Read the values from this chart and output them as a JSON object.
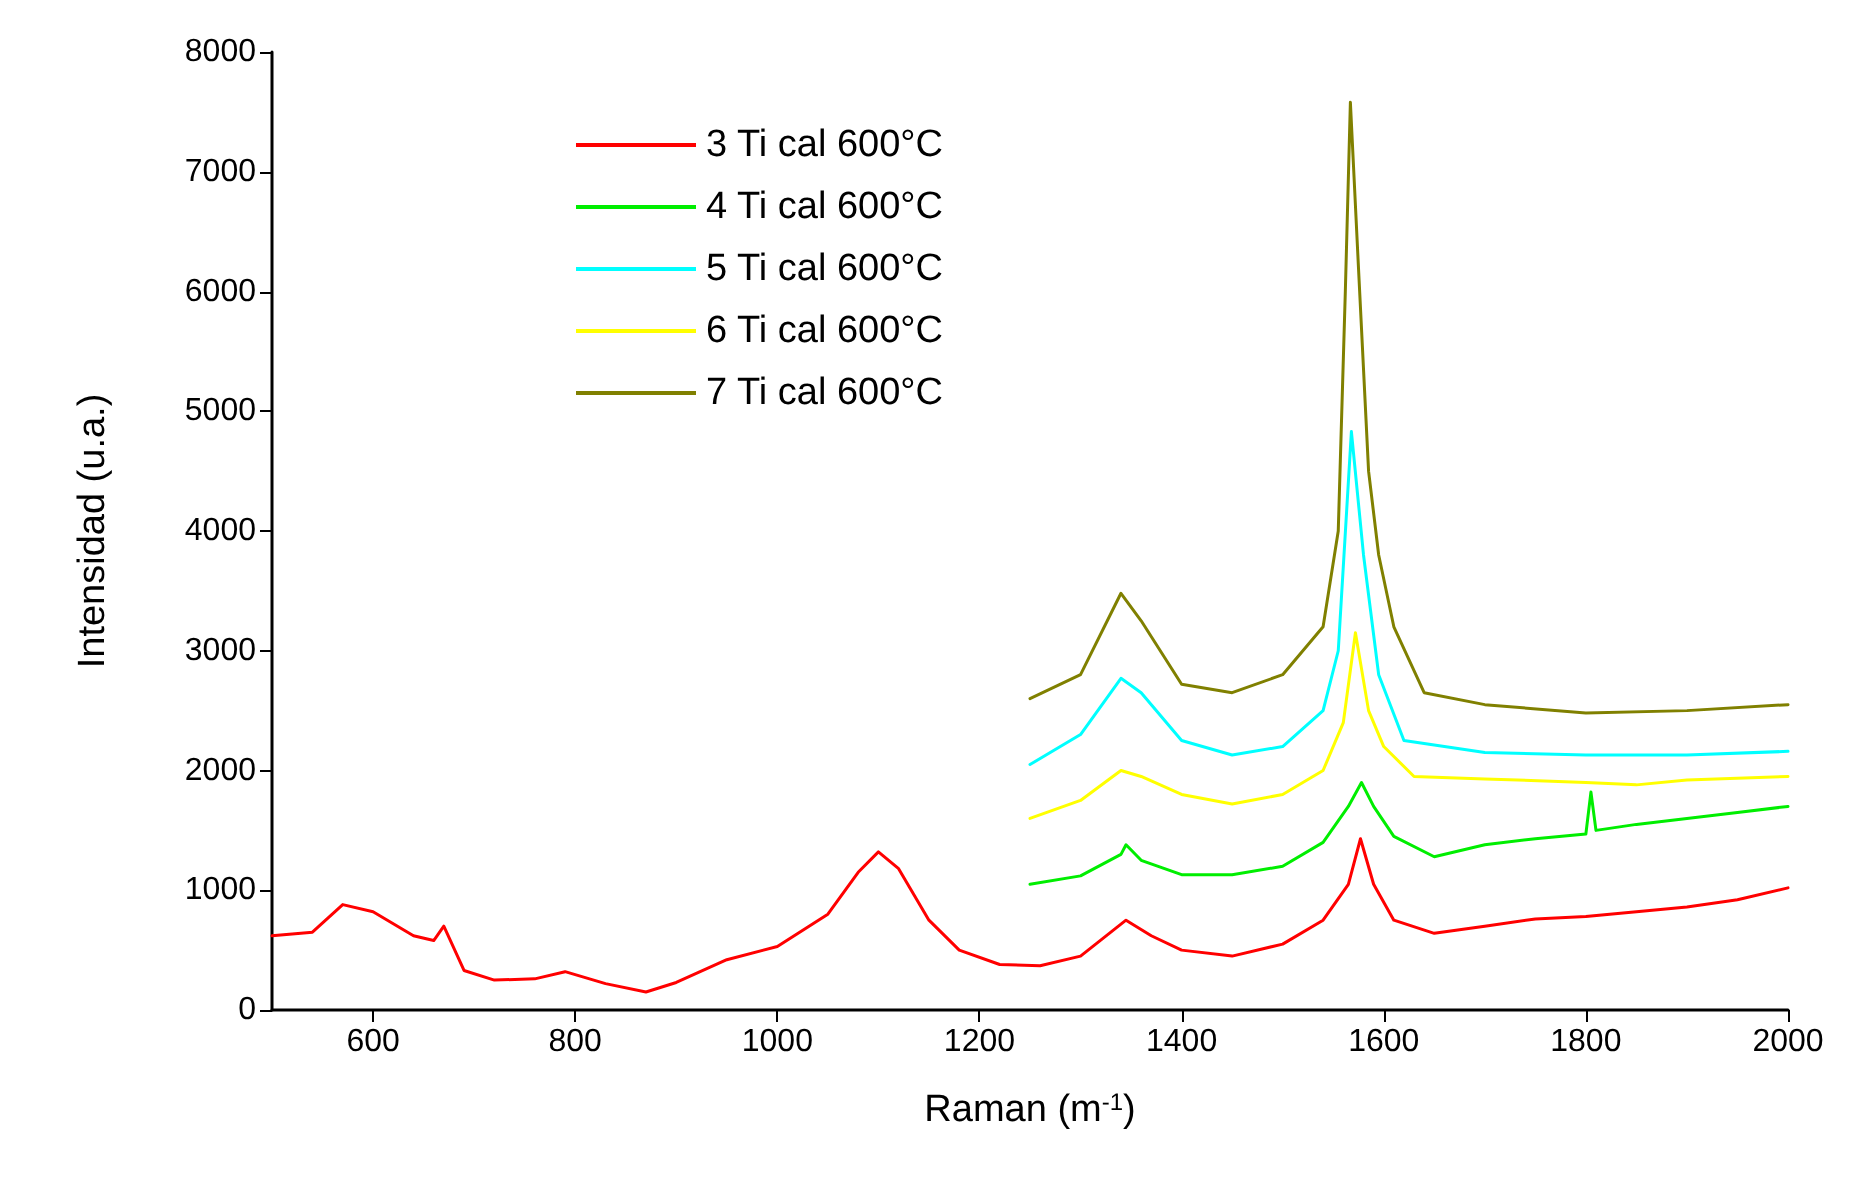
{
  "chart_data": {
    "type": "line",
    "xlabel": "Raman (m$^{-1}$)",
    "ylabel": "Intensidad (u.a.)",
    "xlim": [
      500,
      2000
    ],
    "ylim": [
      0,
      8000
    ],
    "xticks": [
      600,
      800,
      1000,
      1200,
      1400,
      1600,
      1800,
      2000
    ],
    "yticks": [
      0,
      1000,
      2000,
      3000,
      4000,
      5000,
      6000,
      7000,
      8000
    ],
    "grid": false,
    "legend": "top left",
    "marker": "none",
    "line_style": "solid",
    "series": [
      {
        "name": "3 Ti cal 600°C",
        "color": "#ff0000",
        "x": [
          500,
          540,
          570,
          600,
          640,
          660,
          670,
          690,
          720,
          760,
          790,
          830,
          870,
          900,
          950,
          1000,
          1050,
          1080,
          1100,
          1120,
          1150,
          1180,
          1220,
          1260,
          1300,
          1345,
          1370,
          1400,
          1450,
          1500,
          1540,
          1565,
          1577,
          1590,
          1610,
          1650,
          1700,
          1750,
          1800,
          1850,
          1900,
          1950,
          2000
        ],
        "values": [
          620,
          650,
          880,
          820,
          620,
          580,
          700,
          330,
          250,
          260,
          320,
          220,
          150,
          230,
          420,
          530,
          800,
          1150,
          1320,
          1180,
          750,
          500,
          380,
          370,
          450,
          750,
          620,
          500,
          450,
          550,
          750,
          1050,
          1430,
          1050,
          750,
          640,
          700,
          760,
          780,
          820,
          860,
          920,
          1020
        ]
      },
      {
        "name": "4 Ti cal 600°C",
        "color": "#00ee00",
        "x": [
          1250,
          1300,
          1340,
          1345,
          1360,
          1400,
          1450,
          1500,
          1540,
          1565,
          1578,
          1590,
          1610,
          1650,
          1700,
          1750,
          1800,
          1805,
          1810,
          1850,
          1900,
          1950,
          2000
        ],
        "values": [
          1050,
          1120,
          1300,
          1380,
          1250,
          1130,
          1130,
          1200,
          1400,
          1700,
          1900,
          1700,
          1450,
          1280,
          1380,
          1430,
          1470,
          1820,
          1500,
          1550,
          1600,
          1650,
          1700
        ]
      },
      {
        "name": "5 Ti cal 600°C",
        "color": "#00ffff",
        "x": [
          1250,
          1300,
          1340,
          1360,
          1400,
          1450,
          1500,
          1540,
          1555,
          1568,
          1580,
          1595,
          1620,
          1700,
          1800,
          1900,
          2000
        ],
        "values": [
          2050,
          2300,
          2770,
          2650,
          2250,
          2130,
          2200,
          2500,
          3000,
          4830,
          3800,
          2800,
          2250,
          2150,
          2130,
          2130,
          2160
        ]
      },
      {
        "name": "6 Ti cal 600°C",
        "color": "#ffff00",
        "x": [
          1250,
          1300,
          1340,
          1360,
          1400,
          1450,
          1500,
          1540,
          1560,
          1572,
          1585,
          1600,
          1630,
          1700,
          1800,
          1850,
          1900,
          2000
        ],
        "values": [
          1600,
          1750,
          2000,
          1950,
          1800,
          1720,
          1800,
          2000,
          2400,
          3150,
          2500,
          2200,
          1950,
          1930,
          1900,
          1880,
          1920,
          1950
        ]
      },
      {
        "name": "7 Ti cal 600°C",
        "color": "#808000",
        "x": [
          1250,
          1300,
          1340,
          1360,
          1400,
          1450,
          1500,
          1540,
          1555,
          1562,
          1567,
          1575,
          1585,
          1595,
          1610,
          1640,
          1700,
          1800,
          1900,
          2000
        ],
        "values": [
          2600,
          2800,
          3480,
          3250,
          2720,
          2650,
          2800,
          3200,
          4000,
          6000,
          7580,
          6200,
          4500,
          3800,
          3200,
          2650,
          2550,
          2480,
          2500,
          2550
        ]
      }
    ]
  }
}
